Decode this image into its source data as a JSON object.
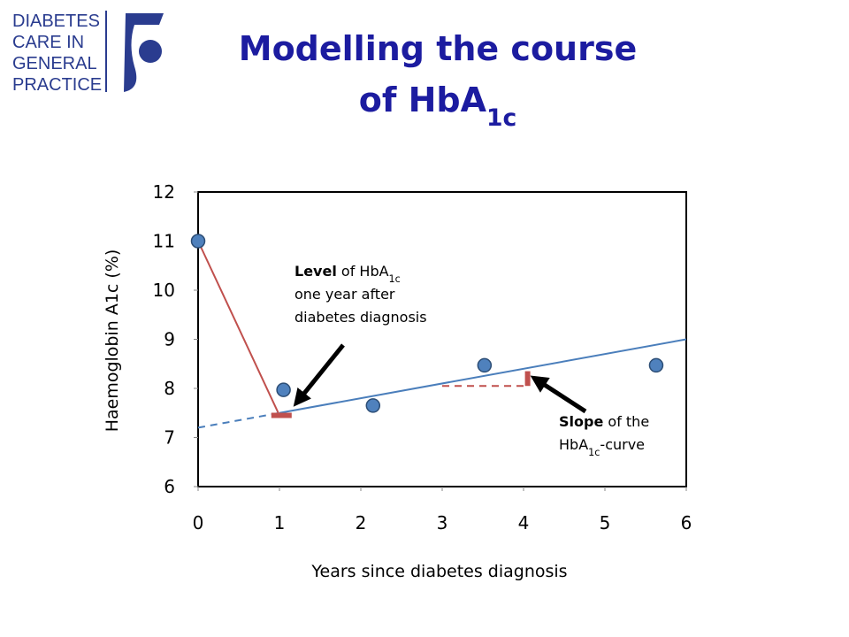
{
  "logo": {
    "lines": [
      "DIABETES",
      "CARE IN",
      "GENERAL",
      "PRACTICE"
    ]
  },
  "title": {
    "lines": [
      [
        {
          "text": "Modelling the course",
          "style": "normal"
        }
      ],
      [
        {
          "text": "of HbA",
          "style": "normal"
        },
        {
          "text": "1c",
          "style": "sub"
        }
      ]
    ]
  },
  "chart_data": {
    "type": "scatter",
    "x_label": "Years since diabetes diagnosis",
    "y_label": "Haemoglobin A1c (%)",
    "xlim": [
      0,
      6
    ],
    "ylim": [
      6,
      12
    ],
    "xticks": [
      0,
      1,
      2,
      3,
      4,
      5,
      6
    ],
    "yticks": [
      6,
      7,
      8,
      9,
      10,
      11,
      12
    ],
    "series": [
      {
        "color": "#4f81bd",
        "x": [
          0,
          1.05,
          2.15,
          3.52,
          5.63
        ],
        "values": [
          11,
          7.97,
          7.65,
          8.47,
          8.47
        ]
      }
    ],
    "lines": [
      {
        "color": "#c0504d",
        "dashed": false,
        "thick": false,
        "x": [
          0,
          1
        ],
        "values": [
          11,
          7.45
        ]
      },
      {
        "color": "#4a7ebb",
        "dashed": true,
        "thick": false,
        "x": [
          0,
          1
        ],
        "values": [
          7.2,
          7.5
        ]
      },
      {
        "color": "#4a7ebb",
        "dashed": false,
        "thick": false,
        "x": [
          1,
          6
        ],
        "values": [
          7.5,
          9
        ]
      },
      {
        "color": "#c0504d",
        "dashed": false,
        "thick": true,
        "x": [
          0.9,
          1.15
        ],
        "values": [
          7.45,
          7.45
        ]
      },
      {
        "color": "#c0504d",
        "dashed": true,
        "thick": false,
        "x": [
          3,
          4.05
        ],
        "values": [
          8.05,
          8.05
        ]
      },
      {
        "color": "#c0504d",
        "dashed": false,
        "thick": true,
        "x": [
          4.05,
          4.05
        ],
        "values": [
          8.05,
          8.35
        ]
      }
    ],
    "annotations": [
      {
        "lines": [
          [
            {
              "text": "Level",
              "style": "bold"
            },
            {
              "text": " of HbA",
              "style": "normal"
            },
            {
              "text": "1c",
              "style": "sub"
            }
          ],
          [
            {
              "text": "one year after",
              "style": "normal"
            }
          ],
          [
            {
              "text": "diabetes diagnosis",
              "style": "normal"
            }
          ]
        ]
      },
      {
        "lines": [
          [
            {
              "text": "Slope",
              "style": "bold"
            },
            {
              "text": " of the",
              "style": "normal"
            }
          ],
          [
            {
              "text": "HbA",
              "style": "normal"
            },
            {
              "text": "1c",
              "style": "sub"
            },
            {
              "text": "-curve",
              "style": "normal"
            }
          ]
        ]
      }
    ]
  }
}
